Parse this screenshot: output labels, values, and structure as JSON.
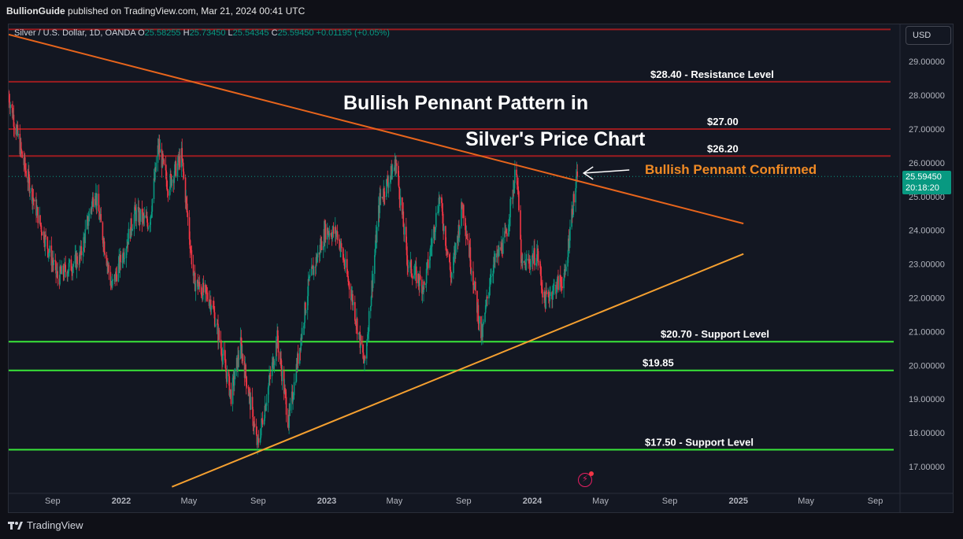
{
  "header": {
    "author": "BullionGuide",
    "published_text": "published on TradingView.com, Mar 21, 2024 00:41 UTC"
  },
  "legend": {
    "symbol": "Silver / U.S. Dollar, 1D, OANDA",
    "open_label": "O",
    "open": "25.58255",
    "high_label": "H",
    "high": "25.73450",
    "low_label": "L",
    "low": "25.54345",
    "close_label": "C",
    "close": "25.59450",
    "change": "+0.01195 (+0.05%)"
  },
  "currency_button": "USD",
  "last_price": {
    "price": "25.59450",
    "countdown": "20:18:20"
  },
  "footer": {
    "brand": "TradingView"
  },
  "colors": {
    "background": "#131722",
    "up_candle": "#089981",
    "down_candle": "#f23645",
    "resistance": "#9c1c20",
    "support": "#39e639",
    "upper_trendline": "#e8651c",
    "lower_trendline": "#f5a030",
    "annotation_orange": "#f08a24"
  },
  "chart_data": {
    "type": "candlestick",
    "title": "Bullish Pennant Pattern in",
    "title_line2": "Silver's Price Chart",
    "ylim": [
      16.3,
      30.1
    ],
    "y_ticks": [
      "29.00000",
      "28.00000",
      "27.00000",
      "26.00000",
      "25.00000",
      "24.00000",
      "23.00000",
      "22.00000",
      "21.00000",
      "20.00000",
      "19.00000",
      "18.00000",
      "17.00000"
    ],
    "y_tick_values": [
      29,
      28,
      27,
      26,
      25,
      24,
      23,
      22,
      21,
      20,
      19,
      18,
      17
    ],
    "x_ticks": [
      "Sep",
      "2022",
      "May",
      "Sep",
      "2023",
      "May",
      "Sep",
      "2024",
      "May",
      "Sep",
      "2025",
      "May",
      "Sep"
    ],
    "x_tick_dates": [
      "2021-09-01",
      "2022-01-01",
      "2022-05-01",
      "2022-09-01",
      "2023-01-01",
      "2023-05-01",
      "2023-09-01",
      "2024-01-01",
      "2024-05-01",
      "2024-09-01",
      "2025-01-01",
      "2025-05-01",
      "2025-09-01"
    ],
    "x_range": [
      "2021-06-15",
      "2025-10-15"
    ],
    "price_path": [
      [
        "2021-06-15",
        28.0
      ],
      [
        "2021-07-10",
        26.1
      ],
      [
        "2021-08-10",
        24.2
      ],
      [
        "2021-09-10",
        22.6
      ],
      [
        "2021-10-20",
        23.2
      ],
      [
        "2021-11-15",
        25.2
      ],
      [
        "2021-12-15",
        22.3
      ],
      [
        "2022-01-10",
        23.6
      ],
      [
        "2022-01-25",
        24.5
      ],
      [
        "2022-02-20",
        24.2
      ],
      [
        "2022-03-08",
        26.5
      ],
      [
        "2022-03-25",
        25.3
      ],
      [
        "2022-04-18",
        26.2
      ],
      [
        "2022-05-10",
        22.5
      ],
      [
        "2022-06-10",
        21.9
      ],
      [
        "2022-07-15",
        19.1
      ],
      [
        "2022-08-01",
        20.6
      ],
      [
        "2022-08-31",
        17.6
      ],
      [
        "2022-10-05",
        20.8
      ],
      [
        "2022-10-25",
        18.3
      ],
      [
        "2022-11-30",
        22.4
      ],
      [
        "2022-12-30",
        24.0
      ],
      [
        "2023-01-20",
        23.9
      ],
      [
        "2023-02-15",
        22.0
      ],
      [
        "2023-03-09",
        20.0
      ],
      [
        "2023-04-05",
        24.9
      ],
      [
        "2023-05-04",
        26.0
      ],
      [
        "2023-05-25",
        23.0
      ],
      [
        "2023-06-23",
        22.3
      ],
      [
        "2023-07-20",
        25.0
      ],
      [
        "2023-08-10",
        22.6
      ],
      [
        "2023-08-30",
        24.8
      ],
      [
        "2023-10-03",
        20.8
      ],
      [
        "2023-10-20",
        22.8
      ],
      [
        "2023-11-15",
        23.8
      ],
      [
        "2023-12-04",
        25.9
      ],
      [
        "2023-12-13",
        22.9
      ],
      [
        "2024-01-10",
        23.3
      ],
      [
        "2024-01-22",
        21.9
      ],
      [
        "2024-02-14",
        22.4
      ],
      [
        "2024-02-28",
        22.6
      ],
      [
        "2024-03-10",
        24.4
      ],
      [
        "2024-03-21",
        25.59
      ]
    ],
    "levels": [
      {
        "price": 29.95,
        "kind": "resistance",
        "label": ""
      },
      {
        "price": 28.4,
        "kind": "resistance",
        "label": "$28.40  - Resistance Level"
      },
      {
        "price": 27.0,
        "kind": "resistance",
        "label": "$27.00"
      },
      {
        "price": 26.2,
        "kind": "resistance",
        "label": "$26.20"
      },
      {
        "price": 20.7,
        "kind": "support",
        "label": "$20.70 - Support Level"
      },
      {
        "price": 19.85,
        "kind": "support",
        "label": "$19.85"
      },
      {
        "price": 17.5,
        "kind": "support",
        "label": "$17.50 - Support Level"
      }
    ],
    "trendlines": [
      {
        "name": "upper",
        "from": [
          "2021-06-15",
          29.8
        ],
        "to": [
          "2025-01-10",
          24.2
        ]
      },
      {
        "name": "lower",
        "from": [
          "2022-04-01",
          16.4
        ],
        "to": [
          "2025-01-10",
          23.3
        ]
      }
    ],
    "annotation": {
      "text": "Bullish Pennant Confirmed",
      "at": [
        "2024-03-21",
        25.6
      ]
    }
  }
}
